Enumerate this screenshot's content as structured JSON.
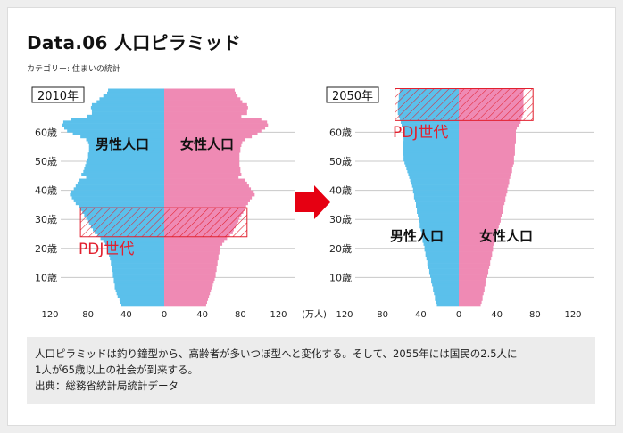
{
  "header": {
    "title": "Data.06 人口ピラミッド",
    "category": "カテゴリー: 住まいの統計"
  },
  "colors": {
    "male": "#5bc0eb",
    "female": "#ef8ab4",
    "highlight": "#e2202e",
    "grid": "#c8c8c8",
    "arrow": "#e60012"
  },
  "chart_data": [
    {
      "type": "bar",
      "subtype": "population-pyramid",
      "year_label": "2010年",
      "ylabels": [
        "10歳",
        "20歳",
        "30歳",
        "40歳",
        "50歳",
        "60歳"
      ],
      "yticks": [
        10,
        20,
        30,
        40,
        50,
        60
      ],
      "ages": [
        0,
        74
      ],
      "xticks": [
        "120",
        "80",
        "40",
        "0",
        "40",
        "80",
        "120"
      ],
      "xlim": [
        -120,
        120
      ],
      "unit": "(万人)",
      "grid": true,
      "series": [
        {
          "name": "男性人口",
          "values": [
            45,
            46,
            47,
            49,
            50,
            51,
            52,
            52,
            53,
            53,
            54,
            54,
            55,
            55,
            56,
            56,
            57,
            58,
            59,
            60,
            60,
            62,
            64,
            67,
            70,
            73,
            75,
            77,
            79,
            80,
            82,
            84,
            86,
            88,
            90,
            93,
            95,
            97,
            99,
            98,
            95,
            93,
            91,
            89,
            82,
            87,
            85,
            84,
            83,
            82,
            81,
            80,
            80,
            79,
            79,
            79,
            80,
            82,
            88,
            96,
            102,
            105,
            107,
            106,
            98,
            81,
            76,
            76,
            77,
            76,
            71,
            68,
            64,
            60,
            59
          ]
        },
        {
          "name": "女性人口",
          "values": [
            44,
            45,
            46,
            47,
            48,
            49,
            50,
            51,
            52,
            53,
            54,
            54,
            55,
            55,
            56,
            56,
            57,
            57,
            58,
            59,
            59,
            61,
            63,
            66,
            69,
            72,
            73,
            75,
            76,
            78,
            79,
            81,
            83,
            85,
            86,
            88,
            90,
            92,
            95,
            94,
            91,
            89,
            87,
            85,
            78,
            81,
            80,
            80,
            79,
            79,
            79,
            79,
            79,
            80,
            80,
            81,
            82,
            85,
            92,
            98,
            102,
            106,
            109,
            108,
            102,
            81,
            87,
            87,
            88,
            87,
            82,
            80,
            77,
            75,
            74
          ]
        }
      ],
      "highlight": {
        "label": "PDJ世代",
        "age_range": [
          24,
          34
        ],
        "male_extent": 88,
        "female_extent": 87
      }
    },
    {
      "type": "bar",
      "subtype": "population-pyramid",
      "year_label": "2050年",
      "ylabels": [
        "10歳",
        "20歳",
        "30歳",
        "40歳",
        "50歳",
        "60歳"
      ],
      "yticks": [
        10,
        20,
        30,
        40,
        50,
        60
      ],
      "ages": [
        0,
        74
      ],
      "xticks": [
        "120",
        "80",
        "40",
        "0",
        "40",
        "80",
        "120"
      ],
      "xlim": [
        -120,
        120
      ],
      "grid": true,
      "series": [
        {
          "name": "男性人口",
          "values": [
            23,
            24,
            25,
            25,
            26,
            27,
            27,
            28,
            29,
            29,
            30,
            31,
            31,
            32,
            33,
            33,
            34,
            35,
            35,
            36,
            36,
            37,
            38,
            38,
            39,
            39,
            40,
            41,
            41,
            42,
            42,
            43,
            44,
            44,
            45,
            45,
            46,
            47,
            47,
            48,
            48,
            49,
            50,
            51,
            52,
            53,
            54,
            55,
            56,
            57,
            58,
            58,
            59,
            59,
            59,
            59,
            59,
            58,
            58,
            58,
            58,
            59,
            60,
            61,
            62,
            63,
            64,
            64,
            64,
            64,
            64,
            63,
            63,
            62,
            62
          ]
        },
        {
          "name": "女性人口",
          "values": [
            23,
            24,
            25,
            25,
            26,
            27,
            27,
            28,
            29,
            29,
            30,
            31,
            31,
            32,
            33,
            33,
            34,
            35,
            35,
            36,
            36,
            37,
            38,
            39,
            39,
            40,
            41,
            42,
            43,
            44,
            44,
            45,
            46,
            46,
            47,
            48,
            49,
            49,
            50,
            51,
            51,
            52,
            53,
            53,
            54,
            55,
            56,
            56,
            57,
            58,
            58,
            58,
            59,
            59,
            59,
            59,
            60,
            60,
            60,
            60,
            60,
            61,
            63,
            65,
            66,
            67,
            68,
            68,
            68,
            68,
            68,
            68,
            68,
            68,
            68
          ]
        }
      ],
      "highlight": {
        "label": "PDJ世代",
        "age_range": [
          64,
          75
        ],
        "male_extent": 67,
        "female_extent": 78
      }
    }
  ],
  "note": {
    "line1": "人口ピラミッドは釣り鐘型から、高齢者が多いつぼ型へと変化する。そして、2055年には国民の2.5人に",
    "line2": "1人が65歳以上の社会が到来する。",
    "source": "出典：総務省統計局統計データ"
  }
}
